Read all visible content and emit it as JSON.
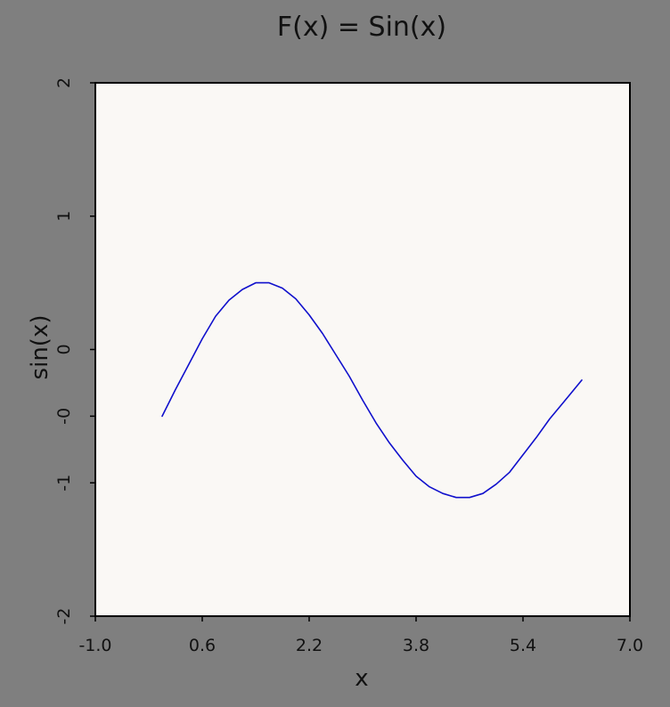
{
  "chart_data": {
    "type": "line",
    "title": "F(x) = Sin(x)",
    "xlabel": "x",
    "ylabel": "sin(x)",
    "xlim": [
      -1.0,
      7.0
    ],
    "ylim": [
      -2,
      2
    ],
    "x_ticks": [
      -1.0,
      0.6,
      2.2,
      3.8,
      5.4,
      7.0
    ],
    "x_tick_labels": [
      "-1.0",
      "0.6",
      "2.2",
      "3.8",
      "5.4",
      "7.0"
    ],
    "y_ticks": [
      -2,
      -1,
      -0.5,
      0,
      1,
      2
    ],
    "y_tick_labels": [
      "-2",
      "-1",
      "-0",
      "0",
      "1",
      "2"
    ],
    "grid": false,
    "legend": "none",
    "series": [
      {
        "color": "#1010cc",
        "x": [
          0.0,
          0.2,
          0.4,
          0.6,
          0.8,
          1.0,
          1.2,
          1.4,
          1.6,
          1.8,
          2.0,
          2.2,
          2.4,
          2.6,
          2.8,
          3.0,
          3.2,
          3.4,
          3.6,
          3.8,
          4.0,
          4.2,
          4.4,
          4.6,
          4.8,
          5.0,
          5.2,
          5.4,
          5.6,
          5.8,
          6.0,
          6.28
        ],
        "y": [
          -0.5,
          -0.3,
          -0.11,
          0.08,
          0.25,
          0.37,
          0.45,
          0.5,
          0.5,
          0.46,
          0.38,
          0.26,
          0.12,
          -0.04,
          -0.2,
          -0.38,
          -0.55,
          -0.7,
          -0.83,
          -0.95,
          -1.03,
          -1.08,
          -1.11,
          -1.11,
          -1.08,
          -1.01,
          -0.92,
          -0.79,
          -0.66,
          -0.52,
          -0.4,
          -0.23
        ]
      }
    ]
  },
  "colors": {
    "background": "#7f7f7f",
    "plot_area": "#faf8f5",
    "line": "#1010cc",
    "frame": "#000000"
  }
}
